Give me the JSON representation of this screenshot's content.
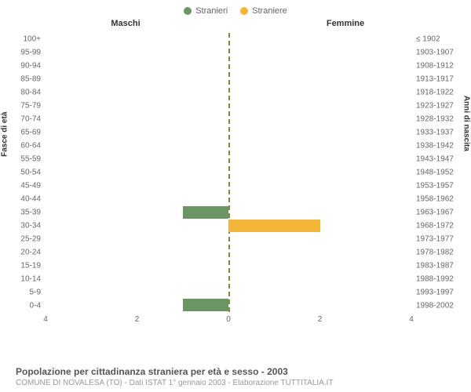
{
  "legend": {
    "male": {
      "label": "Stranieri",
      "color": "#6b9562"
    },
    "female": {
      "label": "Straniere",
      "color": "#f2b53a"
    }
  },
  "headers": {
    "left": "Maschi",
    "right": "Femmine"
  },
  "axes": {
    "left": "Fasce di età",
    "right": "Anni di nascita"
  },
  "chart": {
    "type": "pyramid-bar",
    "xmax": 4,
    "xticks": [
      4,
      2,
      0,
      2,
      4
    ],
    "background_color": "#ffffff",
    "grid_color": "#eeeeee",
    "center_line_color": "#888842",
    "rows": [
      {
        "age": "100+",
        "birth": "≤ 1902",
        "male": 0,
        "female": 0
      },
      {
        "age": "95-99",
        "birth": "1903-1907",
        "male": 0,
        "female": 0
      },
      {
        "age": "90-94",
        "birth": "1908-1912",
        "male": 0,
        "female": 0
      },
      {
        "age": "85-89",
        "birth": "1913-1917",
        "male": 0,
        "female": 0
      },
      {
        "age": "80-84",
        "birth": "1918-1922",
        "male": 0,
        "female": 0
      },
      {
        "age": "75-79",
        "birth": "1923-1927",
        "male": 0,
        "female": 0
      },
      {
        "age": "70-74",
        "birth": "1928-1932",
        "male": 0,
        "female": 0
      },
      {
        "age": "65-69",
        "birth": "1933-1937",
        "male": 0,
        "female": 0
      },
      {
        "age": "60-64",
        "birth": "1938-1942",
        "male": 0,
        "female": 0
      },
      {
        "age": "55-59",
        "birth": "1943-1947",
        "male": 0,
        "female": 0
      },
      {
        "age": "50-54",
        "birth": "1948-1952",
        "male": 0,
        "female": 0
      },
      {
        "age": "45-49",
        "birth": "1953-1957",
        "male": 0,
        "female": 0
      },
      {
        "age": "40-44",
        "birth": "1958-1962",
        "male": 0,
        "female": 0
      },
      {
        "age": "35-39",
        "birth": "1963-1967",
        "male": 1,
        "female": 0
      },
      {
        "age": "30-34",
        "birth": "1968-1972",
        "male": 0,
        "female": 2
      },
      {
        "age": "25-29",
        "birth": "1973-1977",
        "male": 0,
        "female": 0
      },
      {
        "age": "20-24",
        "birth": "1978-1982",
        "male": 0,
        "female": 0
      },
      {
        "age": "15-19",
        "birth": "1983-1987",
        "male": 0,
        "female": 0
      },
      {
        "age": "10-14",
        "birth": "1988-1992",
        "male": 0,
        "female": 0
      },
      {
        "age": "5-9",
        "birth": "1993-1997",
        "male": 0,
        "female": 0
      },
      {
        "age": "0-4",
        "birth": "1998-2002",
        "male": 1,
        "female": 0
      }
    ]
  },
  "title": "Popolazione per cittadinanza straniera per età e sesso - 2003",
  "subtitle": "COMUNE DI NOVALESA (TO) - Dati ISTAT 1° gennaio 2003 - Elaborazione TUTTITALIA.IT"
}
